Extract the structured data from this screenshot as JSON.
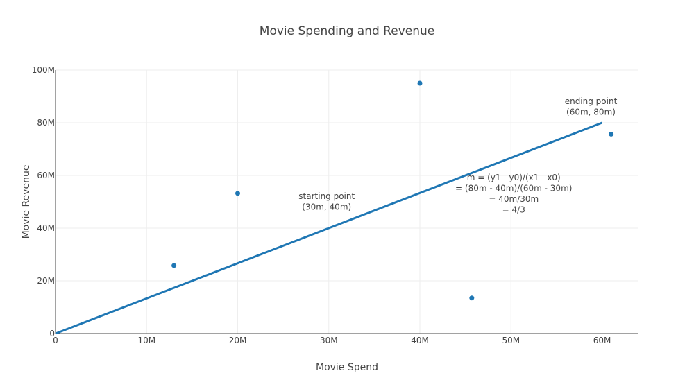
{
  "chart_data": {
    "type": "scatter",
    "title": "Movie Spending and Revenue",
    "xlabel": "Movie Spend",
    "ylabel": "Movie Revenue",
    "xlim": [
      0,
      64000000
    ],
    "ylim": [
      0,
      100000000
    ],
    "grid": true,
    "x_ticks": [
      {
        "value": 0,
        "label": "0"
      },
      {
        "value": 10000000,
        "label": "10M"
      },
      {
        "value": 20000000,
        "label": "20M"
      },
      {
        "value": 30000000,
        "label": "30M"
      },
      {
        "value": 40000000,
        "label": "40M"
      },
      {
        "value": 50000000,
        "label": "50M"
      },
      {
        "value": 60000000,
        "label": "60M"
      }
    ],
    "y_ticks": [
      {
        "value": 0,
        "label": "0"
      },
      {
        "value": 20000000,
        "label": "20M"
      },
      {
        "value": 40000000,
        "label": "40M"
      },
      {
        "value": 60000000,
        "label": "60M"
      },
      {
        "value": 80000000,
        "label": "80M"
      },
      {
        "value": 100000000,
        "label": "100M"
      }
    ],
    "points": [
      {
        "x": 13000000,
        "y": 25800000
      },
      {
        "x": 20000000,
        "y": 53200000
      },
      {
        "x": 40000000,
        "y": 95000000
      },
      {
        "x": 45700000,
        "y": 13500000
      },
      {
        "x": 61000000,
        "y": 75700000
      }
    ],
    "line": {
      "x": [
        0,
        60000000
      ],
      "y": [
        0,
        80000000
      ]
    },
    "annotations": [
      {
        "x": 30000000,
        "y": 40000000,
        "lines": [
          "starting point",
          "(30m, 40m)"
        ]
      },
      {
        "x": 60000000,
        "y": 80000000,
        "lines": [
          "ending point",
          "(60m, 80m)"
        ]
      },
      {
        "x": 50000000,
        "y": 50000000,
        "lines": [
          "m = (y1 - y0)/(x1 - x0)",
          "= (80m - 40m)/(60m - 30m)",
          "= 40m/30m",
          "= 4/3"
        ]
      }
    ],
    "colors": {
      "series": "#1f77b4",
      "grid": "#eeeeee",
      "axis": "#444444",
      "text": "#444444"
    }
  }
}
